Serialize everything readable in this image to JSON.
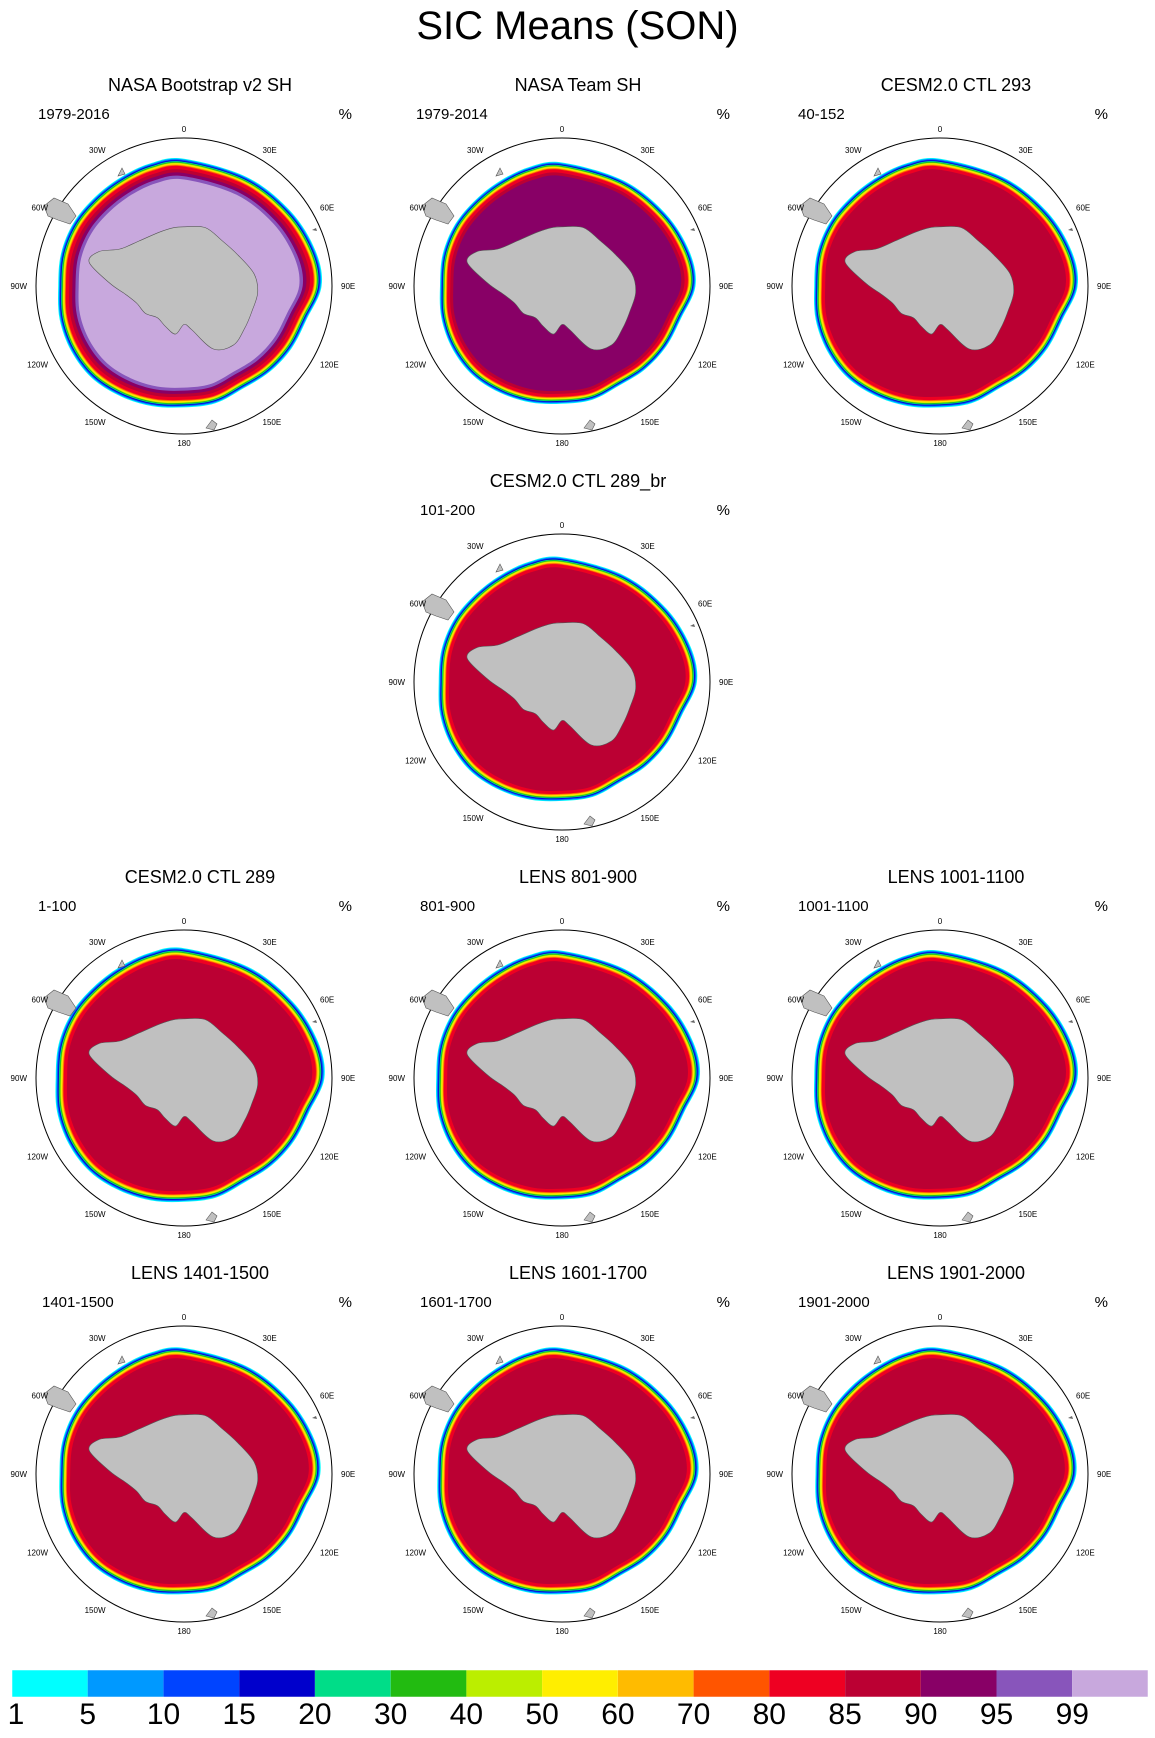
{
  "title": "SIC Means (SON)",
  "unit_label": "%",
  "longitude_labels": [
    "0",
    "30E",
    "60E",
    "90E",
    "120E",
    "150E",
    "180",
    "150W",
    "120W",
    "90W",
    "60W",
    "30W"
  ],
  "panels": [
    {
      "title": "NASA Bootstrap v2 SH",
      "years": "1979-2016",
      "ice_scale": 1.0,
      "inner_class": 99
    },
    {
      "title": "NASA Team SH",
      "years": "1979-2014",
      "ice_scale": 0.97,
      "inner_class": 90
    },
    {
      "title": "CESM2.0 CTL 293",
      "years": "40-152",
      "ice_scale": 1.0,
      "inner_class": 85
    },
    {
      "title": "CESM2.0 CTL 289_br",
      "years": "101-200",
      "ice_scale": 0.98,
      "inner_class": 85
    },
    {
      "title": "CESM2.0 CTL 289",
      "years": "1-100",
      "ice_scale": 1.02,
      "inner_class": 85
    },
    {
      "title": "LENS 801-900",
      "years": "801-900",
      "ice_scale": 1.0,
      "inner_class": 85
    },
    {
      "title": "LENS 1001-1100",
      "years": "1001-1100",
      "ice_scale": 1.0,
      "inner_class": 85
    },
    {
      "title": "LENS 1401-1500",
      "years": "1401-1500",
      "ice_scale": 0.99,
      "inner_class": 85
    },
    {
      "title": "LENS 1601-1700",
      "years": "1601-1700",
      "ice_scale": 0.99,
      "inner_class": 85
    },
    {
      "title": "LENS 1901-2000",
      "years": "1901-2000",
      "ice_scale": 0.99,
      "inner_class": 85
    }
  ],
  "colorbar": {
    "labels": [
      "1",
      "5",
      "10",
      "15",
      "20",
      "30",
      "40",
      "50",
      "60",
      "70",
      "80",
      "85",
      "90",
      "95",
      "99"
    ],
    "colors": [
      "#00ffff",
      "#0099ff",
      "#0044ff",
      "#0000cc",
      "#00dd88",
      "#22bb11",
      "#bbee00",
      "#ffee00",
      "#ffbb00",
      "#ff5500",
      "#ee0022",
      "#bb0033",
      "#880066",
      "#8855bb",
      "#c8a8dd"
    ]
  },
  "land_color": "#c0c0c0"
}
